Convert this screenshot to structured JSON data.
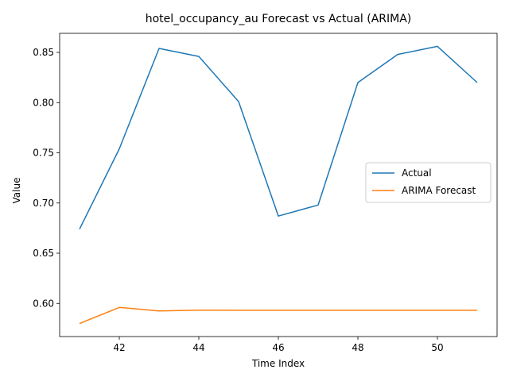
{
  "chart_data": {
    "type": "line",
    "title": "hotel_occupancy_au Forecast vs Actual (ARIMA)",
    "xlabel": "Time Index",
    "ylabel": "Value",
    "x": [
      41,
      42,
      43,
      44,
      45,
      46,
      47,
      48,
      49,
      50,
      51
    ],
    "xlim": [
      40.5,
      51.5
    ],
    "ylim": [
      0.567,
      0.869
    ],
    "xticks": [
      42,
      44,
      46,
      48,
      50
    ],
    "yticks": [
      0.6,
      0.65,
      0.7,
      0.75,
      0.8,
      0.85
    ],
    "ytick_labels": [
      "0.60",
      "0.65",
      "0.70",
      "0.75",
      "0.80",
      "0.85"
    ],
    "grid": false,
    "legend_position": "center-right",
    "series": [
      {
        "name": "Actual",
        "color": "#1f77b4",
        "values": [
          0.674,
          0.754,
          0.854,
          0.846,
          0.801,
          0.687,
          0.698,
          0.82,
          0.848,
          0.856,
          0.82
        ]
      },
      {
        "name": "ARIMA Forecast",
        "color": "#ff7f0e",
        "values": [
          0.58,
          0.596,
          0.5925,
          0.5933,
          0.5932,
          0.5932,
          0.5932,
          0.5932,
          0.5932,
          0.5932,
          0.5932
        ]
      }
    ]
  }
}
